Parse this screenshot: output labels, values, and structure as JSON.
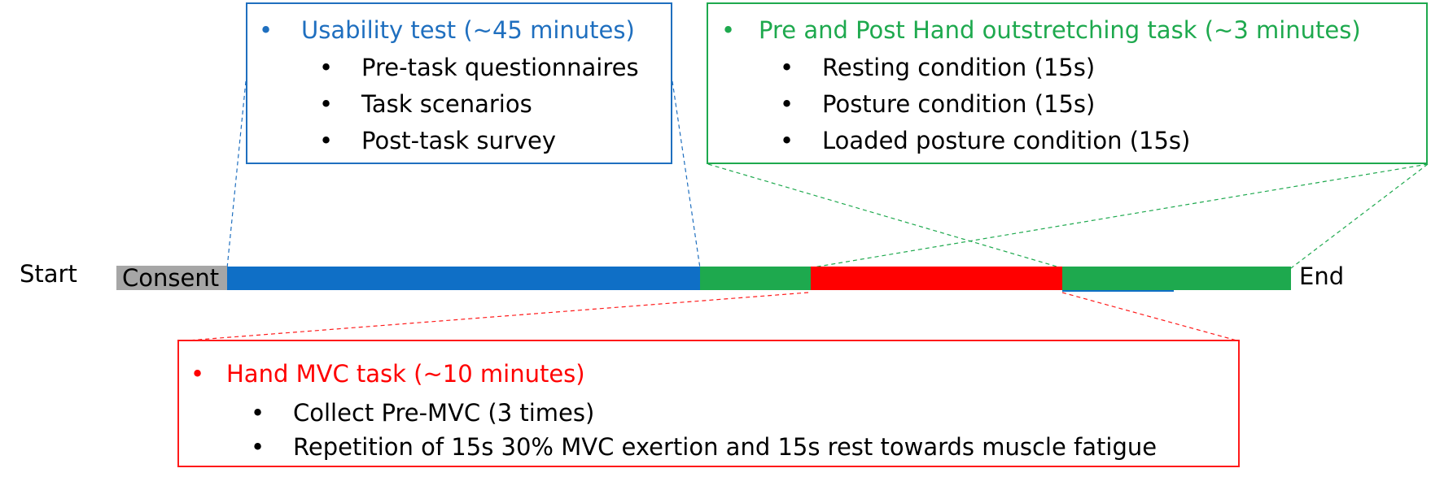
{
  "colors": {
    "consent": "#a6a6a6",
    "usability": "#0f6fc6",
    "hand_outstretching": "#1ea94e",
    "hand_mvc": "#ff0000"
  },
  "timeline": {
    "start_label": "Start",
    "consent_label": "Consent",
    "end_label": "End"
  },
  "usability_box": {
    "bullet": "•",
    "title": "Usability test (~45 minutes)",
    "items": [
      "Pre-task questionnaires",
      "Task scenarios",
      "Post-task survey"
    ]
  },
  "outstretching_box": {
    "bullet": "•",
    "title": "Pre and Post Hand outstretching task (~3 minutes)",
    "items": [
      "Resting condition (15s)",
      "Posture condition (15s)",
      "Loaded posture condition (15s)"
    ]
  },
  "mvc_box": {
    "bullet": "•",
    "title": "Hand MVC task (~10 minutes)",
    "items": [
      "Collect Pre-MVC (3 times)",
      "Repetition of 15s 30% MVC exertion and 15s rest towards muscle fatigue"
    ]
  },
  "sub_bullet": "•"
}
